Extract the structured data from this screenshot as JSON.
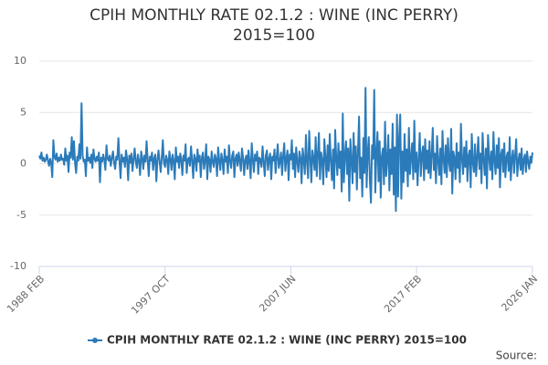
{
  "chart_data": {
    "type": "line",
    "title": "CPIH MONTHLY RATE 02.1.2 : WINE (INC PERRY) 2015=100",
    "source": "Source:",
    "categories": [
      "1988 FEB",
      null,
      null,
      null,
      null,
      null,
      null,
      null,
      null,
      null,
      null,
      null,
      null,
      null,
      null,
      null,
      null,
      null,
      null,
      null,
      null,
      null,
      null,
      null,
      null,
      null,
      null,
      null,
      null,
      null,
      null,
      null,
      null,
      null,
      null,
      null,
      null,
      null,
      null,
      null,
      null,
      null,
      null,
      null,
      null,
      null,
      null,
      null,
      null,
      null,
      null,
      null,
      null,
      null,
      null,
      null,
      null,
      null,
      null,
      null,
      null,
      null,
      null,
      null,
      null,
      null,
      null,
      null,
      null,
      null,
      null,
      null,
      null,
      null,
      null,
      null,
      null,
      null,
      null,
      null,
      null,
      null,
      null,
      null,
      null,
      null,
      null,
      null,
      null,
      null,
      null,
      null,
      null,
      null,
      null,
      null,
      null,
      null,
      null,
      null,
      null,
      null,
      null,
      null,
      null,
      null,
      null,
      null,
      null,
      null,
      null,
      null,
      null,
      null,
      null,
      null,
      "1997 OCT",
      null,
      null,
      null,
      null,
      null,
      null,
      null,
      null,
      null,
      null,
      null,
      null,
      null,
      null,
      null,
      null,
      null,
      null,
      null,
      null,
      null,
      null,
      null,
      null,
      null,
      null,
      null,
      null,
      null,
      null,
      null,
      null,
      null,
      null,
      null,
      null,
      null,
      null,
      null,
      null,
      null,
      null,
      null,
      null,
      null,
      null,
      null,
      null,
      null,
      null,
      null,
      null,
      null,
      null,
      null,
      null,
      null,
      null,
      null,
      null,
      null,
      null,
      null,
      null,
      null,
      null,
      null,
      null,
      null,
      null,
      null,
      null,
      null,
      null,
      null,
      null,
      null,
      null,
      null,
      null,
      null,
      null,
      null,
      null,
      null,
      null,
      null,
      null,
      null,
      null,
      null,
      null,
      null,
      null,
      null,
      null,
      null,
      null,
      null,
      null,
      null,
      null,
      null,
      null,
      null,
      null,
      null,
      null,
      null,
      null,
      null,
      null,
      null,
      null,
      null,
      "2007 JUN",
      null,
      null,
      null,
      null,
      null,
      null,
      null,
      null,
      null,
      null,
      null,
      null,
      null,
      null,
      null,
      null,
      null,
      null,
      null,
      null,
      null,
      null,
      null,
      null,
      null,
      null,
      null,
      null,
      null,
      null,
      null,
      null,
      null,
      null,
      null,
      null,
      null,
      null,
      null,
      null,
      null,
      null,
      null,
      null,
      null,
      null,
      null,
      null,
      null,
      null,
      null,
      null,
      null,
      null,
      null,
      null,
      null,
      null,
      null,
      null,
      null,
      null,
      null,
      null,
      null,
      null,
      null,
      null,
      null,
      null,
      null,
      null,
      null,
      null,
      null,
      null,
      null,
      null,
      null,
      null,
      null,
      null,
      null,
      null,
      null,
      null,
      null,
      null,
      null,
      null,
      null,
      null,
      null,
      null,
      null,
      null,
      null,
      null,
      null,
      null,
      null,
      null,
      null,
      null,
      null,
      null,
      null,
      null,
      null,
      null,
      null,
      null,
      null,
      null,
      null,
      "2017 FEB",
      null,
      null,
      null,
      null,
      null,
      null,
      null,
      null,
      null,
      null,
      null,
      null,
      null,
      null,
      null,
      null,
      null,
      null,
      null,
      null,
      null,
      null,
      null,
      null,
      null,
      null,
      null,
      null,
      null,
      null,
      null,
      null,
      null,
      null,
      null,
      null,
      null,
      null,
      null,
      null,
      null,
      null,
      null,
      null,
      null,
      null,
      null,
      null,
      null,
      null,
      null,
      null,
      null,
      null,
      null,
      null,
      null,
      null,
      null,
      null,
      null,
      null,
      null,
      null,
      null,
      null,
      null,
      null,
      null,
      null,
      null,
      null,
      null,
      null,
      null,
      null,
      null,
      null,
      null,
      null,
      null,
      null,
      null,
      null,
      null,
      null,
      null,
      null,
      null,
      null,
      null,
      null,
      null,
      null,
      null,
      null,
      null,
      null,
      null,
      null,
      null,
      null,
      null,
      null,
      null,
      null,
      "2026 JAN"
    ],
    "series": [
      {
        "name": "CPIH MONTHLY RATE 02.1.2 : WINE (INC PERRY) 2015=100",
        "color": "#2b7bba",
        "values": [
          0.8,
          0.5,
          1.1,
          0.3,
          0.6,
          0.2,
          0.4,
          0.9,
          0.3,
          -0.2,
          0.5,
          0.1,
          -1.3,
          2.3,
          0.7,
          0.4,
          1.0,
          0.2,
          0.6,
          0.3,
          0.9,
          0.4,
          0.5,
          -0.1,
          1.5,
          0.3,
          0.8,
          -0.8,
          1.1,
          0.6,
          2.6,
          0.4,
          2.2,
          0.1,
          -0.9,
          0.7,
          0.3,
          1.9,
          0.5,
          5.9,
          0.8,
          0.2,
          0.4,
          -1.2,
          1.6,
          0.3,
          0.6,
          0.1,
          0.9,
          -0.4,
          1.4,
          0.5,
          0.2,
          0.7,
          0.3,
          1.1,
          -1.8,
          0.6,
          0.2,
          0.9,
          0.4,
          -0.6,
          1.8,
          0.5,
          0.3,
          0.8,
          -0.2,
          0.6,
          1.2,
          0.1,
          -0.5,
          0.7,
          0.4,
          2.5,
          0.3,
          -1.4,
          0.9,
          0.2,
          0.6,
          -0.3,
          1.3,
          0.5,
          -1.6,
          0.8,
          0.1,
          1.0,
          -0.7,
          0.4,
          1.5,
          0.2,
          -0.4,
          0.9,
          0.3,
          -1.1,
          1.2,
          0.6,
          -0.5,
          0.8,
          0.2,
          2.2,
          0.4,
          -1.2,
          0.7,
          0.3,
          1.1,
          -0.6,
          0.5,
          0.9,
          -1.7,
          0.4,
          1.3,
          0.2,
          -0.8,
          0.6,
          2.3,
          0.1,
          -0.3,
          0.8,
          0.4,
          -1.0,
          1.2,
          0.5,
          -0.6,
          0.9,
          0.3,
          -1.5,
          1.6,
          0.2,
          0.7,
          -0.4,
          1.0,
          0.5,
          -1.1,
          0.8,
          0.3,
          1.9,
          -0.9,
          0.4,
          0.6,
          -0.2,
          1.7,
          0.3,
          -1.4,
          0.9,
          0.5,
          -0.7,
          1.4,
          0.2,
          0.8,
          -1.3,
          0.6,
          1.1,
          -0.5,
          0.3,
          1.9,
          -1.5,
          0.7,
          0.4,
          -0.8,
          1.2,
          0.2,
          -0.3,
          0.9,
          0.5,
          -1.2,
          1.6,
          0.3,
          -0.6,
          1.0,
          0.4,
          -1.0,
          1.4,
          0.2,
          0.7,
          -0.9,
          1.8,
          0.3,
          -0.4,
          0.8,
          1.2,
          -1.3,
          0.5,
          0.9,
          -0.2,
          1.1,
          0.3,
          -0.7,
          1.5,
          0.6,
          -1.1,
          0.4,
          0.8,
          -0.5,
          1.3,
          0.2,
          -1.4,
          2.0,
          0.5,
          -0.8,
          0.9,
          0.3,
          1.2,
          -1.0,
          0.6,
          0.4,
          -0.3,
          1.7,
          0.2,
          -1.2,
          0.8,
          1.3,
          -0.6,
          0.5,
          1.0,
          -1.5,
          0.7,
          0.3,
          1.4,
          -0.9,
          0.6,
          1.9,
          -0.4,
          0.2,
          1.1,
          -1.1,
          0.8,
          2.0,
          -0.7,
          0.5,
          1.3,
          -1.6,
          0.9,
          0.4,
          2.3,
          -0.5,
          1.0,
          -1.3,
          1.6,
          0.3,
          -0.8,
          1.2,
          0.6,
          -1.9,
          1.5,
          0.4,
          -1.0,
          2.8,
          0.2,
          -1.4,
          3.2,
          0.7,
          -1.8,
          1.3,
          0.5,
          -0.6,
          2.6,
          -1.2,
          0.9,
          3.0,
          -1.5,
          1.1,
          0.4,
          -2.0,
          2.4,
          0.6,
          -1.3,
          1.8,
          -0.7,
          2.9,
          0.3,
          -1.6,
          1.4,
          -2.4,
          3.3,
          0.5,
          -1.1,
          2.0,
          -0.4,
          1.2,
          -2.7,
          4.9,
          -1.8,
          0.8,
          2.2,
          -1.0,
          1.5,
          -3.6,
          2.4,
          0.4,
          -1.9,
          3.0,
          -0.8,
          1.7,
          -2.5,
          1.1,
          4.6,
          -1.4,
          0.6,
          -3.2,
          2.5,
          -0.9,
          7.4,
          -2.3,
          1.0,
          2.6,
          -1.6,
          -3.8,
          1.8,
          0.5,
          7.2,
          -2.8,
          0.9,
          3.1,
          -1.7,
          2.2,
          -3.3,
          0.7,
          1.5,
          -2.0,
          4.1,
          -1.2,
          0.3,
          2.8,
          -2.6,
          1.4,
          -1.0,
          3.9,
          -3.0,
          1.6,
          -4.6,
          4.8,
          -3.2,
          2.5,
          4.8,
          -3.4,
          1.2,
          -1.8,
          2.9,
          -0.7,
          1.4,
          -2.2,
          3.5,
          -1.0,
          0.6,
          2.0,
          -1.5,
          4.2,
          -0.8,
          1.1,
          -2.1,
          0.5,
          3.0,
          -1.2,
          0.9,
          1.7,
          -1.6,
          2.4,
          -0.5,
          1.3,
          -0.9,
          2.2,
          -1.4,
          0.8,
          3.5,
          -0.6,
          1.0,
          -1.9,
          2.7,
          0.3,
          -1.1,
          1.5,
          -2.0,
          3.2,
          0.4,
          -0.9,
          1.8,
          -1.3,
          2.5,
          0.2,
          -0.7,
          3.4,
          -2.9,
          1.2,
          0.6,
          -1.5,
          2.0,
          -0.4,
          1.1,
          -1.8,
          3.9,
          0.5,
          -1.0,
          1.6,
          -0.3,
          2.2,
          -1.7,
          0.8,
          1.3,
          -2.3,
          2.9,
          0.1,
          -0.8,
          1.9,
          -1.2,
          0.6,
          2.6,
          -0.5,
          1.0,
          -1.9,
          3.0,
          0.4,
          -1.1,
          1.5,
          -2.4,
          2.8,
          0.7,
          -0.6,
          1.2,
          -1.5,
          3.1,
          0.3,
          -1.0,
          1.8,
          -0.4,
          2.5,
          -2.3,
          0.9,
          1.4,
          -0.8,
          2.0,
          -1.3,
          0.6,
          1.1,
          -0.7,
          2.6,
          -1.6,
          0.5,
          1.3,
          -0.9,
          0.8,
          2.4,
          -1.2,
          0.3,
          1.0,
          -0.6,
          1.5,
          -1.0,
          0.4,
          0.9,
          -0.8,
          1.2,
          0.2,
          -0.5,
          0.7,
          0.1,
          1.1
        ]
      }
    ],
    "ylim": [
      -10,
      10
    ],
    "yticks": [
      -10,
      -5,
      0,
      5,
      10
    ],
    "grid": true
  }
}
